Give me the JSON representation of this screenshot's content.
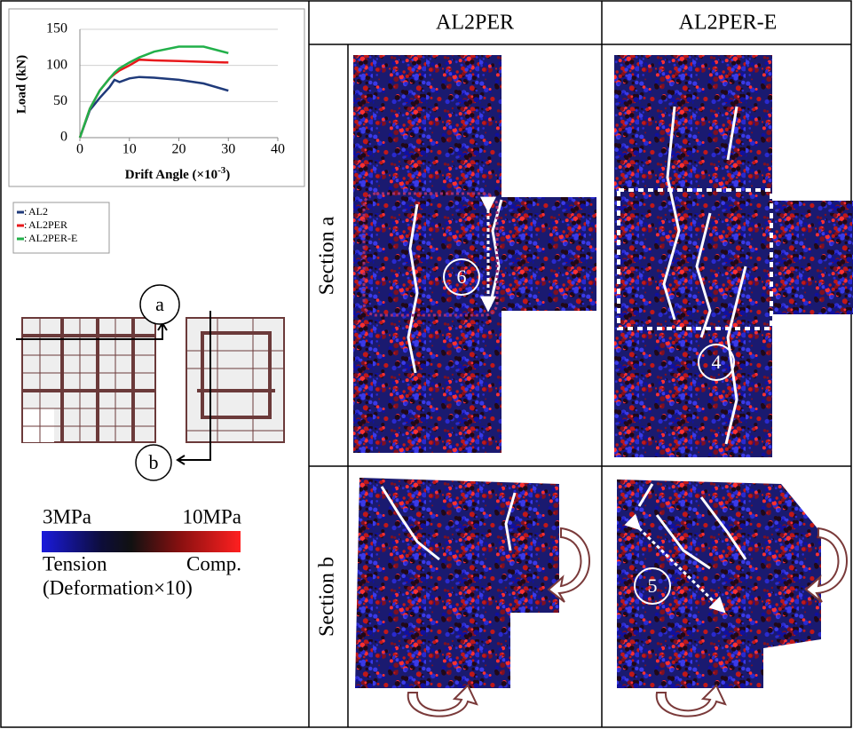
{
  "chart_data": {
    "type": "line",
    "ylabel": "Load (kN)",
    "xlabel": "Drift Angle (",
    "xlabel_factor": "×10",
    "xlabel_sup": "-3",
    "xlabel_end": ")",
    "x": [
      0,
      2,
      4,
      6,
      7,
      8,
      10,
      12,
      15,
      20,
      25,
      30
    ],
    "series": [
      {
        "name": "AL2",
        "color": "#1f3a7a",
        "values": [
          0,
          38,
          55,
          70,
          80,
          77,
          82,
          84,
          83,
          80,
          75,
          65
        ]
      },
      {
        "name": "AL2PER",
        "color": "#e8191c",
        "values": [
          0,
          40,
          65,
          82,
          88,
          93,
          100,
          108,
          107,
          106,
          105,
          104
        ]
      },
      {
        "name": "AL2PER-E",
        "color": "#22b04a",
        "values": [
          0,
          40,
          65,
          82,
          90,
          96,
          104,
          111,
          119,
          126,
          126,
          117
        ]
      }
    ],
    "legend_separator": ":",
    "xlim": [
      0,
      40
    ],
    "xticks": [
      0,
      10,
      20,
      30,
      40
    ],
    "ylim": [
      0,
      150
    ],
    "yticks": [
      0,
      50,
      100,
      150
    ]
  },
  "columns": [
    "AL2PER",
    "AL2PER-E"
  ],
  "rows": [
    "Section a",
    "Section b"
  ],
  "section_marks": [
    "a",
    "b"
  ],
  "markers": [
    "6",
    "4",
    "5"
  ],
  "colorbar": {
    "min_label": "3MPa",
    "max_label": "10MPa",
    "left": "Tension",
    "right": "Comp.",
    "note": "(Deformation×10)"
  }
}
